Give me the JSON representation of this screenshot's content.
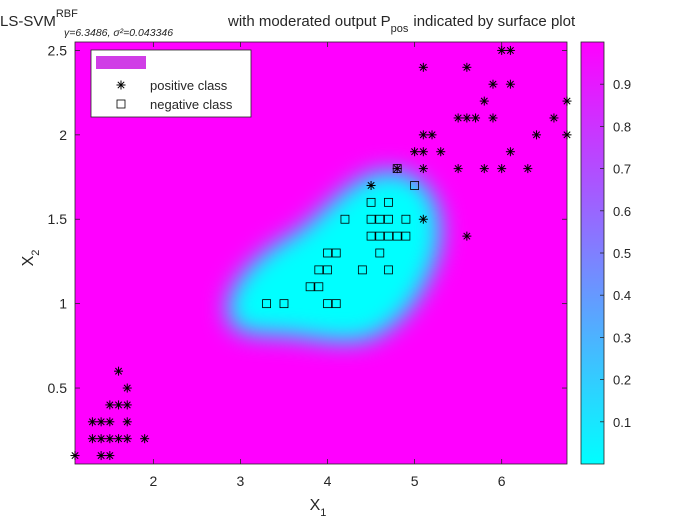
{
  "chart_data": {
    "type": "scatter",
    "title": {
      "prefix": "LS-SVM",
      "superscript": "RBF",
      "params": "γ=6.3486, σ²=0.043346",
      "mid": "with moderated output P",
      "subscript": "pos",
      "suffix": "indicated by surface plot"
    },
    "xlabel": "X",
    "xlabel_sub": "1",
    "ylabel": "X",
    "ylabel_sub": "2",
    "xlim": [
      1.1,
      6.75
    ],
    "ylim": [
      0.05,
      2.55
    ],
    "xticks": [
      2,
      3,
      4,
      5,
      6
    ],
    "yticks": [
      0.5,
      1,
      1.5,
      2,
      2.5
    ],
    "colorbar": {
      "range": [
        0.0,
        1.0
      ],
      "ticks": [
        0.1,
        0.2,
        0.3,
        0.4,
        0.5,
        0.6,
        0.7,
        0.8,
        0.9
      ],
      "low_color": "#00ffff",
      "high_color": "#ff00ff"
    },
    "legend": {
      "position": "top-left",
      "entries": [
        "",
        "positive class",
        "negative class"
      ]
    },
    "series": [
      {
        "name": "positive class",
        "marker": "asterisk",
        "points": [
          [
            1.1,
            0.1
          ],
          [
            1.4,
            0.1
          ],
          [
            1.5,
            0.1
          ],
          [
            1.3,
            0.2
          ],
          [
            1.4,
            0.2
          ],
          [
            1.5,
            0.2
          ],
          [
            1.6,
            0.2
          ],
          [
            1.7,
            0.2
          ],
          [
            1.9,
            0.2
          ],
          [
            1.3,
            0.3
          ],
          [
            1.4,
            0.3
          ],
          [
            1.5,
            0.3
          ],
          [
            1.7,
            0.3
          ],
          [
            1.5,
            0.4
          ],
          [
            1.6,
            0.4
          ],
          [
            1.7,
            0.4
          ],
          [
            1.7,
            0.5
          ],
          [
            1.6,
            0.6
          ],
          [
            4.5,
            1.7
          ],
          [
            4.8,
            1.8
          ],
          [
            5.1,
            1.5
          ],
          [
            5.6,
            1.4
          ],
          [
            5.0,
            1.9
          ],
          [
            5.1,
            1.9
          ],
          [
            5.3,
            1.9
          ],
          [
            6.1,
            1.9
          ],
          [
            5.1,
            1.8
          ],
          [
            5.5,
            1.8
          ],
          [
            5.8,
            1.8
          ],
          [
            6.0,
            1.8
          ],
          [
            6.3,
            1.8
          ],
          [
            5.1,
            2.0
          ],
          [
            5.2,
            2.0
          ],
          [
            6.4,
            2.0
          ],
          [
            6.75,
            2.0
          ],
          [
            5.5,
            2.1
          ],
          [
            5.6,
            2.1
          ],
          [
            5.7,
            2.1
          ],
          [
            5.9,
            2.1
          ],
          [
            6.6,
            2.1
          ],
          [
            5.8,
            2.2
          ],
          [
            6.75,
            2.2
          ],
          [
            5.9,
            2.3
          ],
          [
            6.1,
            2.3
          ],
          [
            5.1,
            2.4
          ],
          [
            5.6,
            2.4
          ],
          [
            6.0,
            2.5
          ],
          [
            6.1,
            2.5
          ]
        ]
      },
      {
        "name": "negative class",
        "marker": "square",
        "points": [
          [
            3.3,
            1.0
          ],
          [
            3.5,
            1.0
          ],
          [
            4.0,
            1.0
          ],
          [
            4.1,
            1.0
          ],
          [
            3.8,
            1.1
          ],
          [
            3.9,
            1.1
          ],
          [
            3.9,
            1.2
          ],
          [
            4.0,
            1.2
          ],
          [
            4.4,
            1.2
          ],
          [
            4.7,
            1.2
          ],
          [
            4.0,
            1.3
          ],
          [
            4.1,
            1.3
          ],
          [
            4.6,
            1.3
          ],
          [
            4.5,
            1.4
          ],
          [
            4.6,
            1.4
          ],
          [
            4.7,
            1.4
          ],
          [
            4.8,
            1.4
          ],
          [
            4.9,
            1.4
          ],
          [
            4.2,
            1.5
          ],
          [
            4.5,
            1.5
          ],
          [
            4.6,
            1.5
          ],
          [
            4.7,
            1.5
          ],
          [
            4.9,
            1.5
          ],
          [
            4.5,
            1.6
          ],
          [
            4.7,
            1.6
          ],
          [
            5.0,
            1.7
          ],
          [
            4.8,
            1.8
          ]
        ]
      }
    ]
  }
}
